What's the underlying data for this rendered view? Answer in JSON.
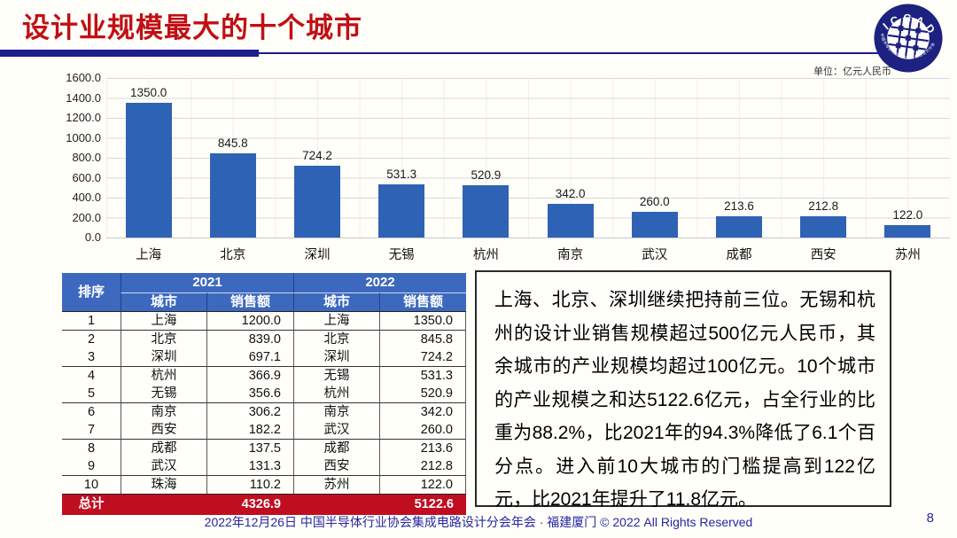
{
  "title": "设计业规模最大的十个城市",
  "logo": {
    "name": "ICCAD",
    "ring_text": "中国半导体行业协会集成电路设计分会"
  },
  "unit_label": "单位：亿元人民币",
  "chart_data": {
    "type": "bar",
    "title": "",
    "xlabel": "",
    "ylabel": "",
    "unit": "亿元人民币",
    "categories": [
      "上海",
      "北京",
      "深圳",
      "无锡",
      "杭州",
      "南京",
      "武汉",
      "成都",
      "西安",
      "苏州"
    ],
    "values": [
      1350.0,
      845.8,
      724.2,
      531.3,
      520.9,
      342.0,
      260.0,
      213.6,
      212.8,
      122.0
    ],
    "value_labels": [
      "1350.0",
      "845.8",
      "724.2",
      "531.3",
      "520.9",
      "342.0",
      "260.0",
      "213.6",
      "212.8",
      "122.0"
    ],
    "ylim": [
      0,
      1600
    ],
    "ytick_interval": 200,
    "yticks": [
      "1600.0",
      "1400.0",
      "1200.0",
      "1000.0",
      "800.0",
      "600.0",
      "400.0",
      "200.0",
      "0.0"
    ],
    "grid": true,
    "legend": "none",
    "bar_color": "#2E62B5"
  },
  "table": {
    "header": {
      "rank": "排序",
      "year1": "2021",
      "year2": "2022",
      "city": "城市",
      "sales": "销售额"
    },
    "rows": [
      {
        "rank": "1",
        "city2021": "上海",
        "sales2021": "1200.0",
        "city2022": "上海",
        "sales2022": "1350.0"
      },
      {
        "rank": "2",
        "city2021": "北京",
        "sales2021": "839.0",
        "city2022": "北京",
        "sales2022": "845.8"
      },
      {
        "rank": "3",
        "city2021": "深圳",
        "sales2021": "697.1",
        "city2022": "深圳",
        "sales2022": "724.2"
      },
      {
        "rank": "4",
        "city2021": "杭州",
        "sales2021": "366.9",
        "city2022": "无锡",
        "sales2022": "531.3"
      },
      {
        "rank": "5",
        "city2021": "无锡",
        "sales2021": "356.6",
        "city2022": "杭州",
        "sales2022": "520.9"
      },
      {
        "rank": "6",
        "city2021": "南京",
        "sales2021": "306.2",
        "city2022": "南京",
        "sales2022": "342.0"
      },
      {
        "rank": "7",
        "city2021": "西安",
        "sales2021": "182.2",
        "city2022": "武汉",
        "sales2022": "260.0"
      },
      {
        "rank": "8",
        "city2021": "成都",
        "sales2021": "137.5",
        "city2022": "成都",
        "sales2022": "213.6"
      },
      {
        "rank": "9",
        "city2021": "武汉",
        "sales2021": "131.3",
        "city2022": "西安",
        "sales2022": "212.8"
      },
      {
        "rank": "10",
        "city2021": "珠海",
        "sales2021": "110.2",
        "city2022": "苏州",
        "sales2022": "122.0"
      }
    ],
    "total": {
      "label": "总计",
      "sales2021": "4326.9",
      "sales2022": "5122.6"
    }
  },
  "commentary": "上海、北京、深圳继续把持前三位。无锡和杭州的设计业销售规模超过500亿元人民币，其余城市的产业规模均超过100亿元。10个城市的产业规模之和达5122.6亿元，占全行业的比重为88.2%，比2021年的94.3%降低了6.1个百分点。进入前10大城市的门槛提高到122亿元，比2021年提升了11.8亿元。",
  "footer": {
    "text": "2022年12月26日 中国半导体行业协会集成电路设计分会年会 · 福建厦门 © 2022 All Rights Reserved",
    "page": "8"
  },
  "colors": {
    "title_red": "#C10F15",
    "navy_rule": "#1D1D8C",
    "bar_blue": "#2E62B5",
    "table_header_blue": "#3C69BE",
    "total_row_red": "#C00E21",
    "footer_navy": "#2626A5",
    "background": "#FFFEF8"
  }
}
